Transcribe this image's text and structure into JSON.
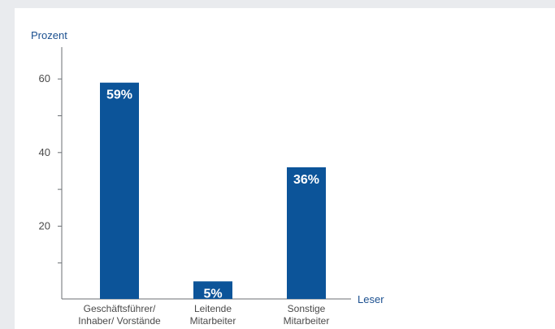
{
  "chart_data": {
    "type": "bar",
    "title": "",
    "ylabel": "Prozent",
    "xlabel": "Leser",
    "ylim": [
      0,
      70
    ],
    "yticks": [
      20,
      40,
      60
    ],
    "categories": [
      [
        "Geschäftsführer/",
        "Inhaber/ Vorstände"
      ],
      [
        "Leitende",
        "Mitarbeiter"
      ],
      [
        "Sonstige",
        "Mitarbeiter"
      ]
    ],
    "values": [
      59,
      5,
      36
    ],
    "value_labels": [
      "59%",
      "5%",
      "36%"
    ],
    "grid": false,
    "legend": "none",
    "colors": {
      "bar": "#0c5499",
      "axis_title": "#1a4f8f"
    }
  }
}
